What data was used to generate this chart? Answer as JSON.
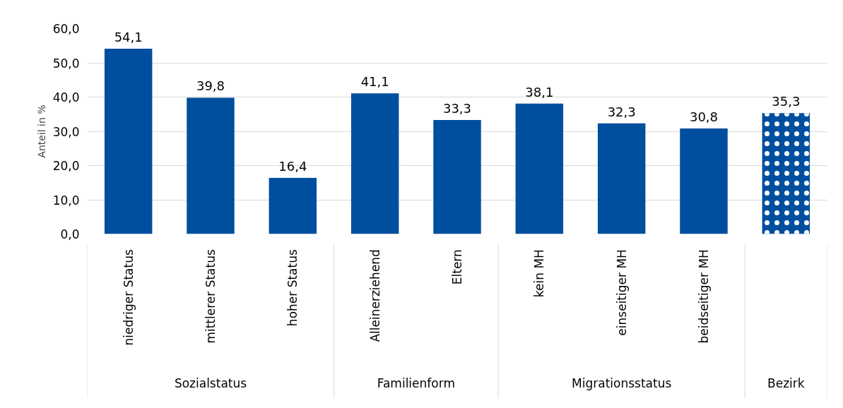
{
  "chart_data": {
    "type": "bar",
    "ylabel": "Anteil in %",
    "categories": [
      "niedriger Status",
      "mittlerer Status",
      "hoher Status",
      "Alleinerziehend",
      "Eltern",
      "kein MH",
      "einseitiger MH",
      "beidseitiger MH",
      null
    ],
    "values": [
      54.1,
      39.8,
      16.4,
      41.1,
      33.3,
      38.1,
      32.3,
      30.8,
      35.3
    ],
    "value_labels": [
      "54,1",
      "39,8",
      "16,4",
      "41,1",
      "33,3",
      "38,1",
      "32,3",
      "30,8",
      "35,3"
    ],
    "colors": [
      "#004f9f",
      "#004f9f",
      "#004f9f",
      "#004f9f",
      "#004f9f",
      "#004f9f",
      "#004f9f",
      "#004f9f",
      "#004f9f"
    ],
    "ylim": [
      0,
      60
    ],
    "yticks": [
      {
        "value": 0,
        "label": "0,0"
      },
      {
        "value": 10,
        "label": "10,0"
      },
      {
        "value": 20,
        "label": "20,0"
      },
      {
        "value": 30,
        "label": "30,0"
      },
      {
        "value": 40,
        "label": "40,0"
      },
      {
        "value": 50,
        "label": "50,0"
      },
      {
        "value": 60,
        "label": "60,0"
      }
    ],
    "grid": "y",
    "annotations": [
      "Sozialstatus",
      "Familienform",
      "Migrationsstatus",
      "Bezirk"
    ]
  }
}
